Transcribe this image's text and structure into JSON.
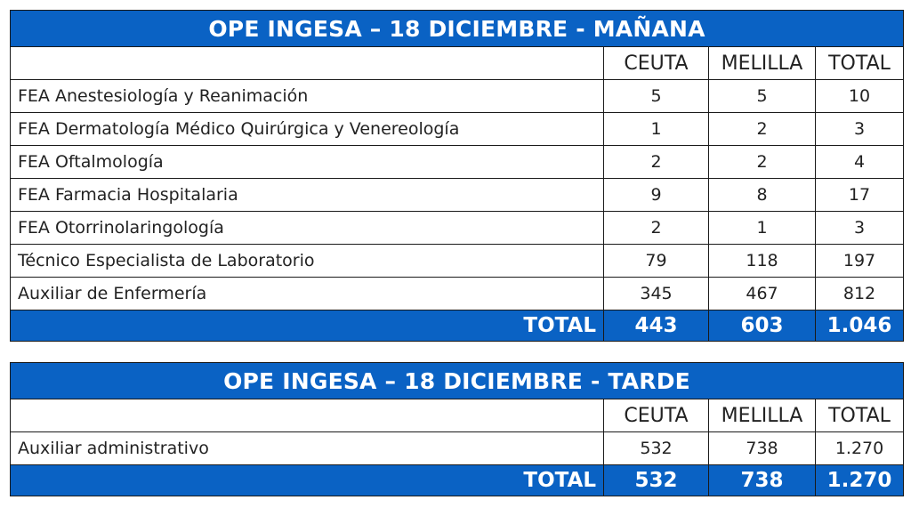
{
  "tables": [
    {
      "title": "OPE INGESA – 18 DICIEMBRE - MAÑANA",
      "columns": [
        "",
        "CEUTA",
        "MELILLA",
        "TOTAL"
      ],
      "rows": [
        {
          "label": "FEA Anestesiología y Reanimación",
          "ceuta": "5",
          "melilla": "5",
          "total": "10"
        },
        {
          "label": "FEA Dermatología Médico Quirúrgica y Venereología",
          "ceuta": "1",
          "melilla": "2",
          "total": "3"
        },
        {
          "label": "FEA Oftalmología",
          "ceuta": "2",
          "melilla": "2",
          "total": "4"
        },
        {
          "label": "FEA Farmacia Hospitalaria",
          "ceuta": "9",
          "melilla": "8",
          "total": "17"
        },
        {
          "label": "FEA Otorrinolaringología",
          "ceuta": "2",
          "melilla": "1",
          "total": "3"
        },
        {
          "label": "Técnico Especialista de Laboratorio",
          "ceuta": "79",
          "melilla": "118",
          "total": "197"
        },
        {
          "label": "Auxiliar de Enfermería",
          "ceuta": "345",
          "melilla": "467",
          "total": "812"
        }
      ],
      "total": {
        "label": "TOTAL",
        "ceuta": "443",
        "melilla": "603",
        "total": "1.046"
      }
    },
    {
      "title": "OPE INGESA – 18 DICIEMBRE - TARDE",
      "columns": [
        "",
        "CEUTA",
        "MELILLA",
        "TOTAL"
      ],
      "rows": [
        {
          "label": "Auxiliar administrativo",
          "ceuta": "532",
          "melilla": "738",
          "total": "1.270"
        }
      ],
      "total": {
        "label": "TOTAL",
        "ceuta": "532",
        "melilla": "738",
        "total": "1.270"
      }
    }
  ],
  "colors": {
    "header_blue": "#0a62c4",
    "border": "#1a1a1a",
    "text": "#222222"
  }
}
